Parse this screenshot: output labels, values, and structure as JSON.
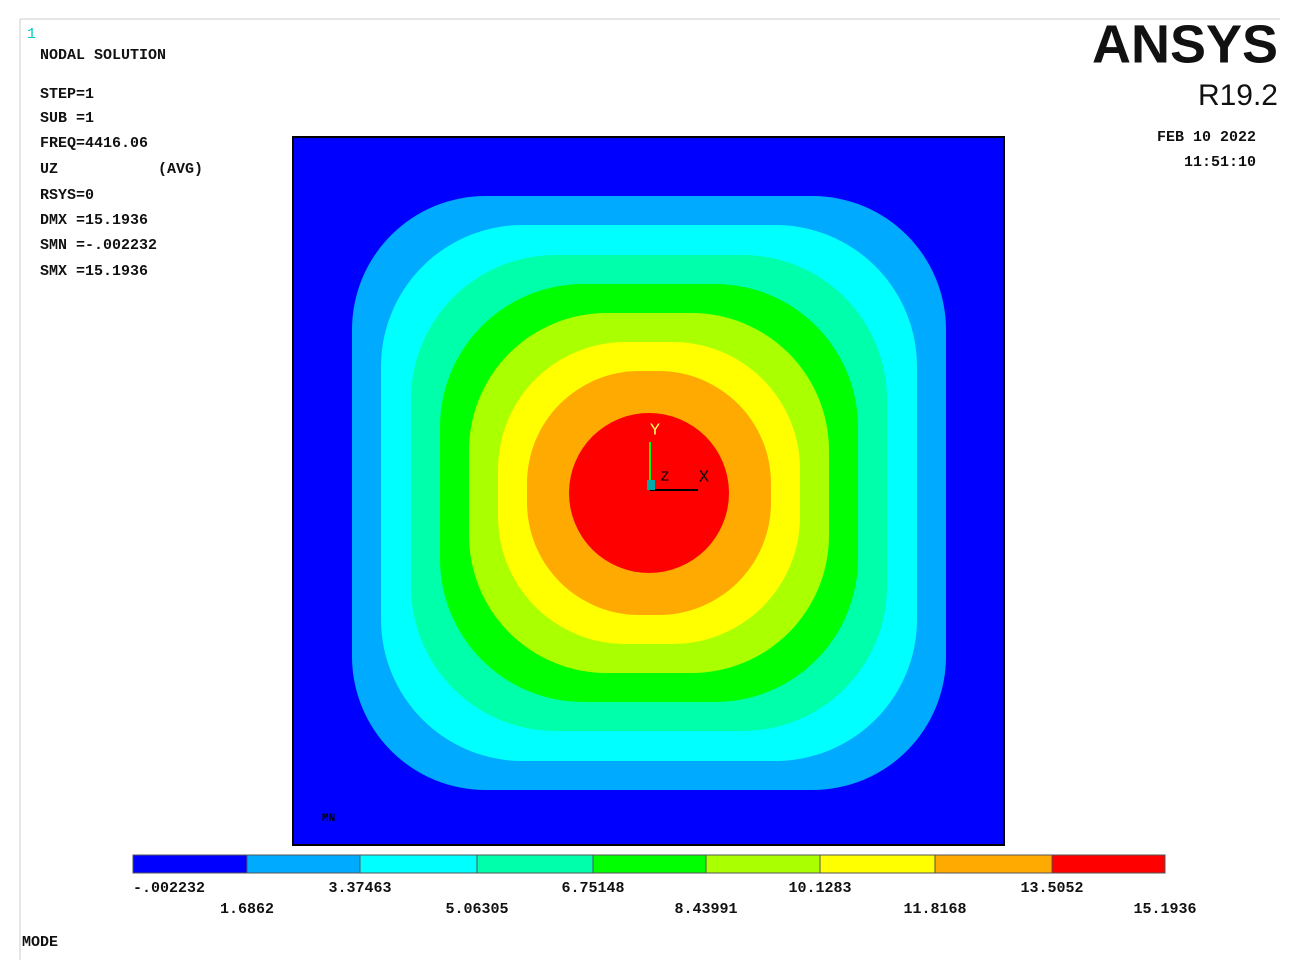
{
  "window_id": "1",
  "header": {
    "title": "NODAL SOLUTION",
    "step": "STEP=1",
    "sub": "SUB =1",
    "freq": "FREQ=4416.06",
    "item": "UZ",
    "avg": "(AVG)",
    "rsys": "RSYS=0",
    "dmx": "DMX =15.1936",
    "smn": "SMN =-.002232",
    "smx": "SMX =15.1936"
  },
  "brand": {
    "name": "ANSYS",
    "release": "R19.2",
    "date": "FEB 10 2022",
    "time": "11:51:10"
  },
  "plot": {
    "min_marker": "MN",
    "axis_y": "Y",
    "axis_z": "Z",
    "axis_x": "X",
    "background": "#0000ff"
  },
  "legend": {
    "labels": [
      "-.002232",
      "1.6862",
      "3.37463",
      "5.06305",
      "6.75148",
      "8.43991",
      "10.1283",
      "11.8168",
      "13.5052",
      "15.1936"
    ],
    "colors": [
      "#0000ff",
      "#00aaff",
      "#00ffff",
      "#00ffaa",
      "#00ff00",
      "#aaff00",
      "#ffff00",
      "#ffaa00",
      "#ff0000"
    ]
  },
  "footer": {
    "label": "MODE"
  }
}
